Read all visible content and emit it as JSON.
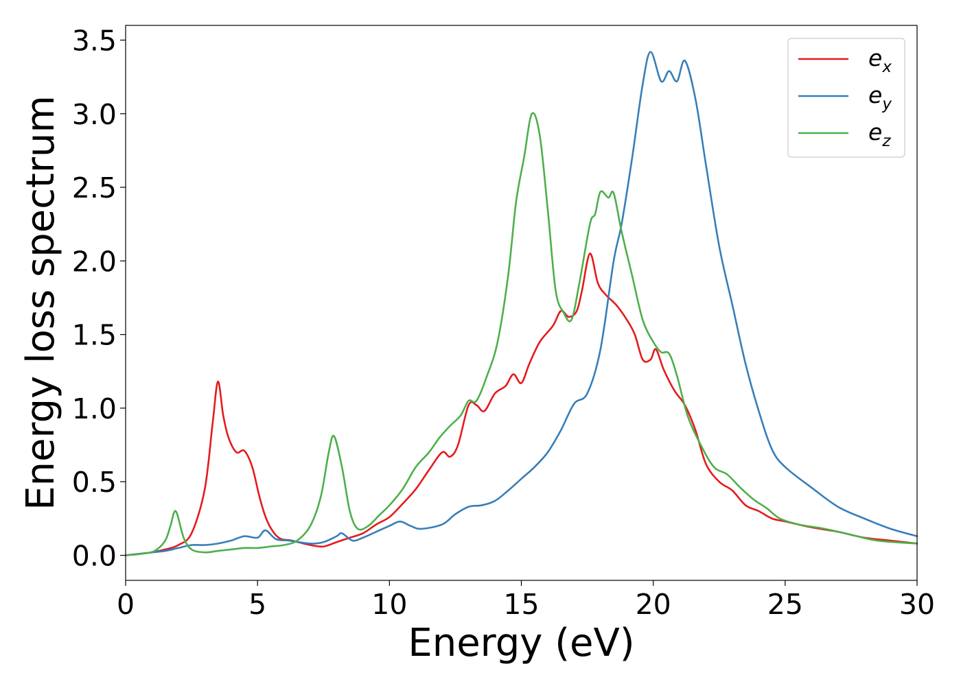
{
  "chart_data": {
    "type": "line",
    "xlabel": "Energy (eV)",
    "ylabel": "Energy loss spectrum",
    "xlim": [
      0,
      30
    ],
    "ylim": [
      -0.17,
      3.6
    ],
    "xticks": [
      0,
      5,
      10,
      15,
      20,
      25,
      30
    ],
    "yticks": [
      0.0,
      0.5,
      1.0,
      1.5,
      2.0,
      2.5,
      3.0,
      3.5
    ],
    "xtick_labels": [
      "0",
      "5",
      "10",
      "15",
      "20",
      "25",
      "30"
    ],
    "ytick_labels": [
      "0.0",
      "0.5",
      "1.0",
      "1.5",
      "2.0",
      "2.5",
      "3.0",
      "3.5"
    ],
    "grid": false,
    "legend": "top-right",
    "series": [
      {
        "name": "e_x",
        "symbol": "e",
        "subscript": "x",
        "color": "#e41a1c",
        "points": [
          [
            0,
            0
          ],
          [
            0.5,
            0.01
          ],
          [
            1,
            0.02
          ],
          [
            1.5,
            0.04
          ],
          [
            2,
            0.07
          ],
          [
            2.5,
            0.15
          ],
          [
            3,
            0.45
          ],
          [
            3.3,
            0.9
          ],
          [
            3.5,
            1.18
          ],
          [
            3.7,
            0.95
          ],
          [
            3.9,
            0.8
          ],
          [
            4.2,
            0.7
          ],
          [
            4.5,
            0.71
          ],
          [
            4.8,
            0.6
          ],
          [
            5.1,
            0.38
          ],
          [
            5.4,
            0.22
          ],
          [
            5.8,
            0.12
          ],
          [
            6.3,
            0.1
          ],
          [
            7,
            0.07
          ],
          [
            7.5,
            0.06
          ],
          [
            8,
            0.09
          ],
          [
            8.5,
            0.12
          ],
          [
            9,
            0.15
          ],
          [
            9.5,
            0.21
          ],
          [
            10,
            0.26
          ],
          [
            10.5,
            0.35
          ],
          [
            11,
            0.45
          ],
          [
            11.5,
            0.58
          ],
          [
            12,
            0.7
          ],
          [
            12.3,
            0.67
          ],
          [
            12.6,
            0.75
          ],
          [
            13,
            1.02
          ],
          [
            13.3,
            1.02
          ],
          [
            13.6,
            0.98
          ],
          [
            14,
            1.1
          ],
          [
            14.4,
            1.15
          ],
          [
            14.7,
            1.23
          ],
          [
            15,
            1.17
          ],
          [
            15.3,
            1.3
          ],
          [
            15.7,
            1.45
          ],
          [
            16.2,
            1.56
          ],
          [
            16.5,
            1.66
          ],
          [
            16.8,
            1.62
          ],
          [
            17.1,
            1.66
          ],
          [
            17.3,
            1.8
          ],
          [
            17.6,
            2.05
          ],
          [
            17.9,
            1.85
          ],
          [
            18.2,
            1.77
          ],
          [
            18.6,
            1.7
          ],
          [
            19,
            1.6
          ],
          [
            19.3,
            1.5
          ],
          [
            19.6,
            1.33
          ],
          [
            19.9,
            1.33
          ],
          [
            20.1,
            1.4
          ],
          [
            20.4,
            1.26
          ],
          [
            20.8,
            1.12
          ],
          [
            21.2,
            1.02
          ],
          [
            21.6,
            0.85
          ],
          [
            22,
            0.62
          ],
          [
            22.5,
            0.5
          ],
          [
            23,
            0.44
          ],
          [
            23.5,
            0.34
          ],
          [
            24,
            0.3
          ],
          [
            24.5,
            0.25
          ],
          [
            25,
            0.23
          ],
          [
            26,
            0.19
          ],
          [
            27,
            0.16
          ],
          [
            28,
            0.12
          ],
          [
            29,
            0.1
          ],
          [
            30,
            0.08
          ]
        ]
      },
      {
        "name": "e_y",
        "symbol": "e",
        "subscript": "y",
        "color": "#377eb8",
        "points": [
          [
            0,
            0
          ],
          [
            0.5,
            0.01
          ],
          [
            1,
            0.02
          ],
          [
            1.5,
            0.03
          ],
          [
            2,
            0.05
          ],
          [
            2.5,
            0.07
          ],
          [
            3,
            0.07
          ],
          [
            3.5,
            0.08
          ],
          [
            4,
            0.1
          ],
          [
            4.5,
            0.13
          ],
          [
            5,
            0.12
          ],
          [
            5.3,
            0.17
          ],
          [
            5.7,
            0.11
          ],
          [
            6.2,
            0.1
          ],
          [
            7,
            0.08
          ],
          [
            7.5,
            0.09
          ],
          [
            8,
            0.13
          ],
          [
            8.2,
            0.15
          ],
          [
            8.6,
            0.1
          ],
          [
            9,
            0.12
          ],
          [
            9.5,
            0.16
          ],
          [
            10,
            0.2
          ],
          [
            10.4,
            0.23
          ],
          [
            10.8,
            0.2
          ],
          [
            11.2,
            0.18
          ],
          [
            12,
            0.21
          ],
          [
            12.5,
            0.28
          ],
          [
            13,
            0.33
          ],
          [
            13.5,
            0.34
          ],
          [
            14,
            0.37
          ],
          [
            14.5,
            0.44
          ],
          [
            15,
            0.52
          ],
          [
            15.5,
            0.6
          ],
          [
            16,
            0.7
          ],
          [
            16.5,
            0.85
          ],
          [
            17,
            1.03
          ],
          [
            17.5,
            1.1
          ],
          [
            18,
            1.4
          ],
          [
            18.5,
            2.0
          ],
          [
            18.8,
            2.25
          ],
          [
            19.2,
            2.7
          ],
          [
            19.6,
            3.2
          ],
          [
            19.9,
            3.42
          ],
          [
            20.3,
            3.22
          ],
          [
            20.6,
            3.29
          ],
          [
            20.9,
            3.22
          ],
          [
            21.2,
            3.36
          ],
          [
            21.6,
            3.1
          ],
          [
            22,
            2.65
          ],
          [
            22.5,
            2.1
          ],
          [
            23,
            1.7
          ],
          [
            23.5,
            1.3
          ],
          [
            24,
            0.98
          ],
          [
            24.5,
            0.72
          ],
          [
            25,
            0.6
          ],
          [
            26,
            0.46
          ],
          [
            27,
            0.33
          ],
          [
            28,
            0.25
          ],
          [
            29,
            0.18
          ],
          [
            30,
            0.13
          ]
        ]
      },
      {
        "name": "e_z",
        "symbol": "e",
        "subscript": "z",
        "color": "#4daf4a",
        "points": [
          [
            0,
            0
          ],
          [
            0.6,
            0.01
          ],
          [
            1.1,
            0.03
          ],
          [
            1.5,
            0.1
          ],
          [
            1.7,
            0.2
          ],
          [
            1.9,
            0.3
          ],
          [
            2.2,
            0.12
          ],
          [
            2.5,
            0.04
          ],
          [
            3,
            0.02
          ],
          [
            3.5,
            0.03
          ],
          [
            4,
            0.04
          ],
          [
            4.5,
            0.05
          ],
          [
            5,
            0.05
          ],
          [
            5.5,
            0.06
          ],
          [
            6,
            0.07
          ],
          [
            6.5,
            0.1
          ],
          [
            7,
            0.2
          ],
          [
            7.4,
            0.4
          ],
          [
            7.7,
            0.7
          ],
          [
            7.9,
            0.81
          ],
          [
            8.2,
            0.6
          ],
          [
            8.5,
            0.3
          ],
          [
            8.8,
            0.18
          ],
          [
            9.2,
            0.2
          ],
          [
            9.6,
            0.27
          ],
          [
            10,
            0.34
          ],
          [
            10.5,
            0.45
          ],
          [
            11,
            0.6
          ],
          [
            11.5,
            0.7
          ],
          [
            11.9,
            0.8
          ],
          [
            12.3,
            0.88
          ],
          [
            12.7,
            0.95
          ],
          [
            13,
            1.05
          ],
          [
            13.3,
            1.05
          ],
          [
            13.7,
            1.22
          ],
          [
            14.1,
            1.45
          ],
          [
            14.5,
            1.9
          ],
          [
            14.8,
            2.4
          ],
          [
            15.1,
            2.7
          ],
          [
            15.4,
            3.0
          ],
          [
            15.7,
            2.85
          ],
          [
            16,
            2.35
          ],
          [
            16.3,
            1.8
          ],
          [
            16.6,
            1.65
          ],
          [
            16.9,
            1.6
          ],
          [
            17.2,
            1.85
          ],
          [
            17.6,
            2.25
          ],
          [
            17.8,
            2.32
          ],
          [
            18,
            2.47
          ],
          [
            18.3,
            2.43
          ],
          [
            18.5,
            2.46
          ],
          [
            18.8,
            2.2
          ],
          [
            19.2,
            1.9
          ],
          [
            19.6,
            1.6
          ],
          [
            20,
            1.45
          ],
          [
            20.3,
            1.38
          ],
          [
            20.6,
            1.37
          ],
          [
            20.9,
            1.22
          ],
          [
            21.3,
            0.95
          ],
          [
            21.8,
            0.75
          ],
          [
            22.3,
            0.6
          ],
          [
            22.8,
            0.55
          ],
          [
            23.3,
            0.46
          ],
          [
            23.8,
            0.38
          ],
          [
            24.3,
            0.32
          ],
          [
            24.8,
            0.25
          ],
          [
            25.5,
            0.21
          ],
          [
            26.5,
            0.18
          ],
          [
            27.5,
            0.14
          ],
          [
            28.5,
            0.1
          ],
          [
            30,
            0.08
          ]
        ]
      }
    ]
  }
}
